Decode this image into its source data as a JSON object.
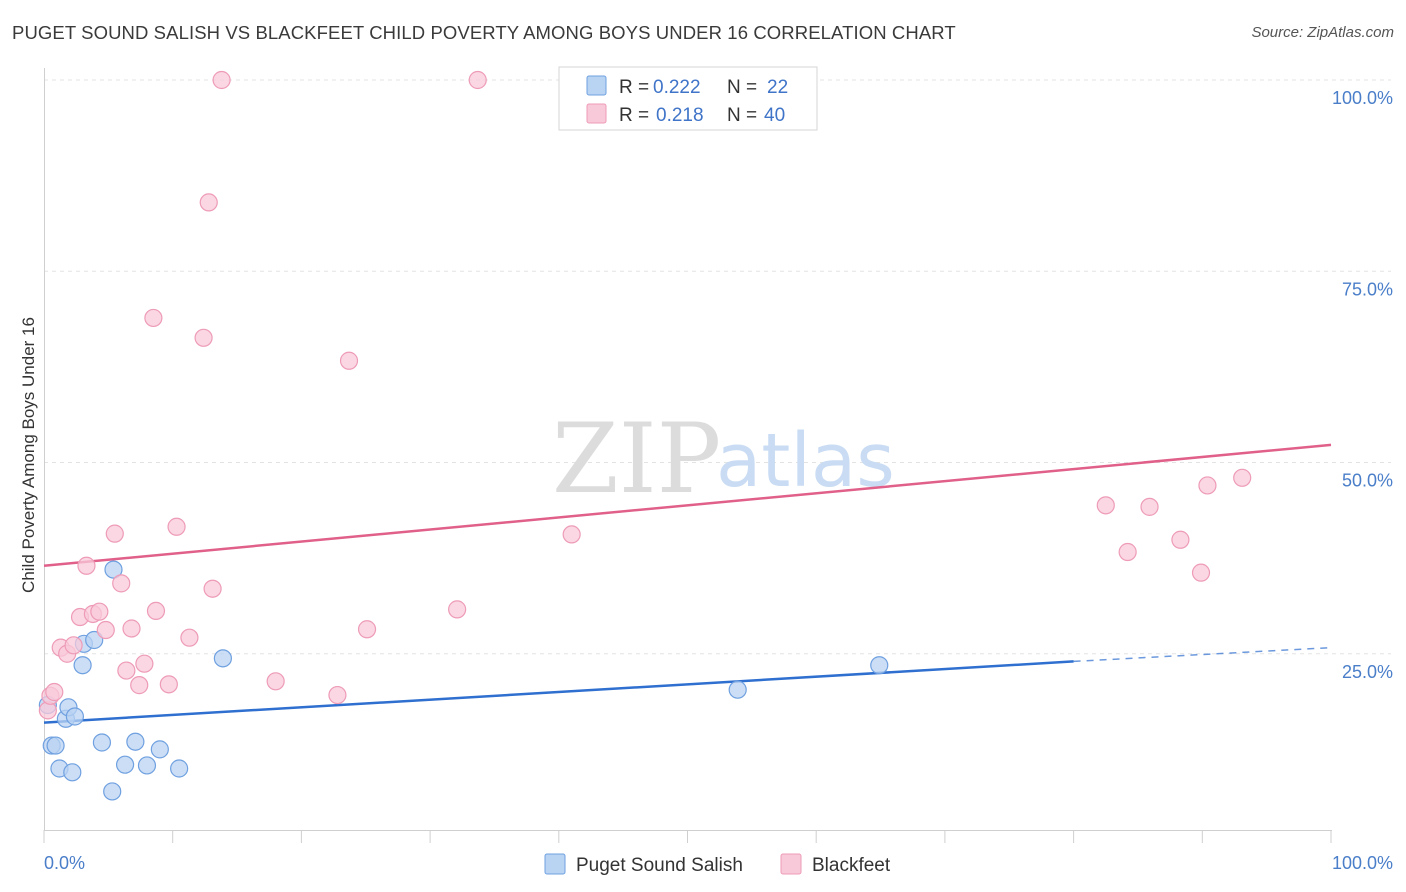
{
  "chart_data": {
    "type": "scatter",
    "title": "PUGET SOUND SALISH VS BLACKFEET CHILD POVERTY AMONG BOYS UNDER 16 CORRELATION CHART",
    "source": "Source: ZipAtlas.com",
    "xlabel": "",
    "ylabel": "Child Poverty Among Boys Under 16",
    "xlim": [
      0,
      100
    ],
    "ylim": [
      0,
      100
    ],
    "x_tick_labels": [
      "0.0%",
      "100.0%"
    ],
    "y_ticks": [
      25,
      50,
      75,
      100
    ],
    "y_tick_labels": [
      "25.0%",
      "50.0%",
      "75.0%",
      "100.0%"
    ],
    "grid": true,
    "watermark": {
      "zip": "ZIP",
      "atlas": "atlas"
    },
    "legend_position": "top-center",
    "series": [
      {
        "name": "Puget Sound Salish",
        "color": "#6fa0e0",
        "fill": "#b9d3f3",
        "line_color": "#2f6fcf",
        "R": "0.222",
        "N": "22",
        "trend": {
          "x0": 0,
          "y0": 16.0,
          "x1": 80,
          "y1": 24.0,
          "dashed_to": 100,
          "dashed_y": 25.8
        },
        "points": [
          [
            0.3,
            18.3
          ],
          [
            0.6,
            13.0
          ],
          [
            0.9,
            13.0
          ],
          [
            1.2,
            10.0
          ],
          [
            1.7,
            16.5
          ],
          [
            1.9,
            18.0
          ],
          [
            2.2,
            9.5
          ],
          [
            2.4,
            16.8
          ],
          [
            3.0,
            23.5
          ],
          [
            3.1,
            26.3
          ],
          [
            3.9,
            26.8
          ],
          [
            4.5,
            13.4
          ],
          [
            5.3,
            7.0
          ],
          [
            5.4,
            36.0
          ],
          [
            6.3,
            10.5
          ],
          [
            7.1,
            13.5
          ],
          [
            8.0,
            10.4
          ],
          [
            9.0,
            12.5
          ],
          [
            10.5,
            10.0
          ],
          [
            13.9,
            24.4
          ],
          [
            53.9,
            20.3
          ],
          [
            64.9,
            23.5
          ]
        ]
      },
      {
        "name": "Blackfeet",
        "color": "#ee9bb7",
        "fill": "#f8c9d9",
        "line_color": "#e0608a",
        "R": "0.218",
        "N": "40",
        "trend": {
          "x0": 0,
          "y0": 36.5,
          "x1": 100,
          "y1": 52.3
        },
        "points": [
          [
            0.3,
            17.6
          ],
          [
            0.5,
            19.5
          ],
          [
            0.8,
            20.0
          ],
          [
            1.3,
            25.8
          ],
          [
            1.8,
            25.0
          ],
          [
            2.3,
            26.1
          ],
          [
            2.8,
            29.8
          ],
          [
            3.3,
            36.5
          ],
          [
            3.8,
            30.2
          ],
          [
            4.3,
            30.5
          ],
          [
            4.8,
            28.1
          ],
          [
            5.5,
            40.7
          ],
          [
            6.0,
            34.2
          ],
          [
            6.4,
            22.8
          ],
          [
            6.8,
            28.3
          ],
          [
            7.4,
            20.9
          ],
          [
            7.8,
            23.7
          ],
          [
            8.5,
            68.9
          ],
          [
            8.7,
            30.6
          ],
          [
            9.7,
            21.0
          ],
          [
            10.3,
            41.6
          ],
          [
            11.3,
            27.1
          ],
          [
            12.4,
            66.3
          ],
          [
            12.8,
            84.0
          ],
          [
            13.1,
            33.5
          ],
          [
            13.8,
            100.0
          ],
          [
            18.0,
            21.4
          ],
          [
            22.8,
            19.6
          ],
          [
            23.7,
            63.3
          ],
          [
            25.1,
            28.2
          ],
          [
            32.1,
            30.8
          ],
          [
            33.7,
            100.0
          ],
          [
            41.0,
            40.6
          ],
          [
            82.5,
            44.4
          ],
          [
            84.2,
            38.3
          ],
          [
            85.9,
            44.2
          ],
          [
            88.3,
            39.9
          ],
          [
            89.9,
            35.6
          ],
          [
            90.4,
            47.0
          ],
          [
            93.1,
            48.0
          ]
        ]
      }
    ]
  }
}
